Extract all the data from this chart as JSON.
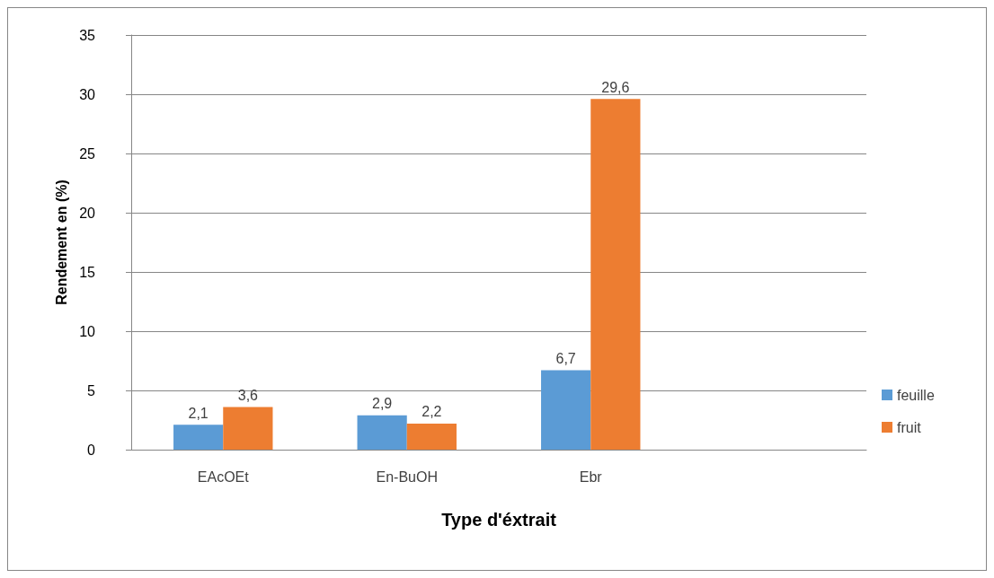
{
  "chart_data": {
    "type": "bar",
    "xlabel": "Type d'éxtrait",
    "ylabel": "Rendement en (%)",
    "categories": [
      "EAcOEt",
      "En-BuOH",
      "Ebr",
      null
    ],
    "series": [
      {
        "name": "feuille",
        "color": "#5b9bd5",
        "values": [
          2.1,
          2.9,
          6.7,
          null
        ],
        "value_labels": [
          "2,1",
          "2,9",
          "6,7",
          null
        ]
      },
      {
        "name": "fruit",
        "color": "#ed7d31",
        "values": [
          3.6,
          2.2,
          29.6,
          null
        ],
        "value_labels": [
          "3,6",
          "2,2",
          "29,6",
          null
        ]
      }
    ],
    "ylim": [
      0,
      35
    ],
    "yticks": [
      0,
      5,
      10,
      15,
      20,
      25,
      30,
      35
    ],
    "grid": "y",
    "legend": "right"
  }
}
